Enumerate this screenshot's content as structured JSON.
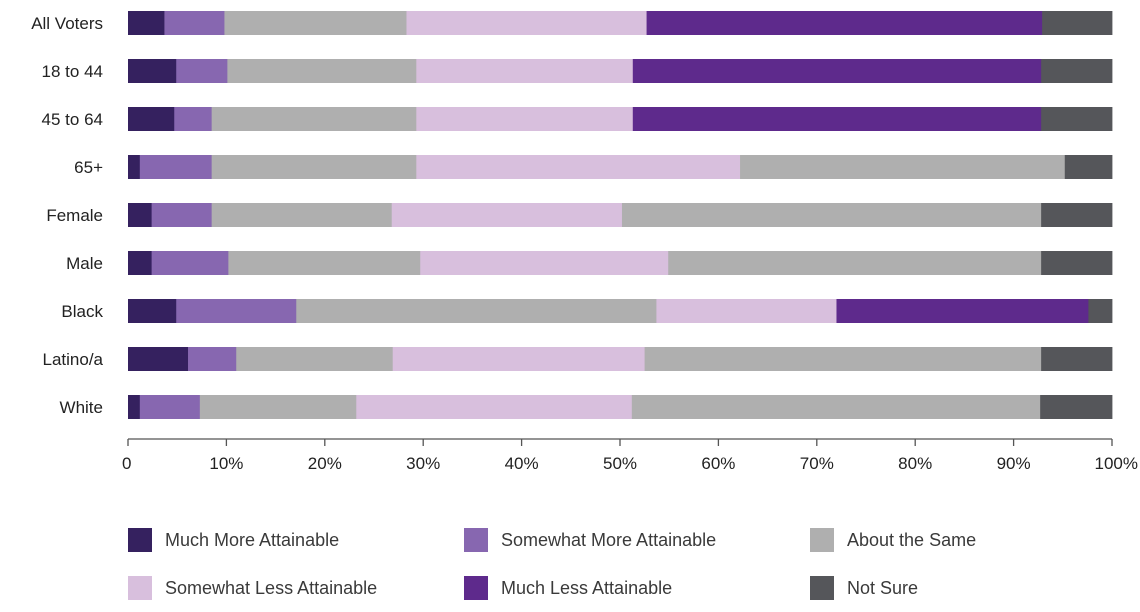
{
  "chart_data": {
    "type": "bar",
    "orientation": "horizontal",
    "stacked": true,
    "categories": [
      "All Voters",
      "18 to 44",
      "45 to 64",
      "65+",
      "Female",
      "Male",
      "Black",
      "Latino/a",
      "White"
    ],
    "series": [
      {
        "name": "Much More Attainable",
        "color": "#35215f",
        "values": [
          3.7,
          4.9,
          4.7,
          1.2,
          2.4,
          2.4,
          4.9,
          6.1,
          1.2
        ]
      },
      {
        "name": "Somewhat More Attainable",
        "color": "#8767b0",
        "values": [
          6.1,
          5.2,
          3.8,
          7.3,
          6.1,
          7.8,
          12.2,
          4.9,
          6.1
        ]
      },
      {
        "name": "About the Same",
        "color": "#afafaf",
        "values": [
          18.5,
          19.2,
          20.8,
          20.8,
          18.3,
          19.5,
          36.6,
          15.9,
          15.9
        ]
      },
      {
        "name": "Somewhat Less Attainable",
        "color": "#d8bfdd",
        "values": [
          24.4,
          22.0,
          22.0,
          32.9,
          23.4,
          25.2,
          18.3,
          25.6,
          28.0
        ]
      },
      {
        "name": "Much Less Attainable",
        "color": "#5e2a8c",
        "values": [
          40.2,
          41.5,
          41.5,
          0,
          0,
          0,
          25.6,
          0,
          0
        ]
      },
      {
        "name": "About the Same",
        "color": "#afafaf",
        "legend": false,
        "values": [
          0,
          0,
          0,
          33.0,
          42.6,
          37.9,
          0,
          40.3,
          41.5
        ]
      },
      {
        "name": "Not Sure",
        "color": "#55565a",
        "values": [
          7.1,
          7.2,
          7.2,
          4.8,
          7.2,
          7.2,
          2.4,
          7.2,
          7.3
        ]
      }
    ],
    "x_ticks": [
      "0",
      "10%",
      "20%",
      "30%",
      "40%",
      "50%",
      "60%",
      "70%",
      "80%",
      "90%",
      "100%"
    ],
    "xlim": [
      0,
      100
    ],
    "title": "",
    "xlabel": "",
    "ylabel": "",
    "grid": false,
    "legend_position": "bottom",
    "legend": [
      {
        "label": "Much More Attainable",
        "color": "#35215f"
      },
      {
        "label": "Somewhat More Attainable",
        "color": "#8767b0"
      },
      {
        "label": "About the Same",
        "color": "#afafaf"
      },
      {
        "label": "Somewhat Less Attainable",
        "color": "#d8bfdd"
      },
      {
        "label": "Much Less Attainable",
        "color": "#5e2a8c"
      },
      {
        "label": "Not Sure",
        "color": "#55565a"
      }
    ]
  }
}
